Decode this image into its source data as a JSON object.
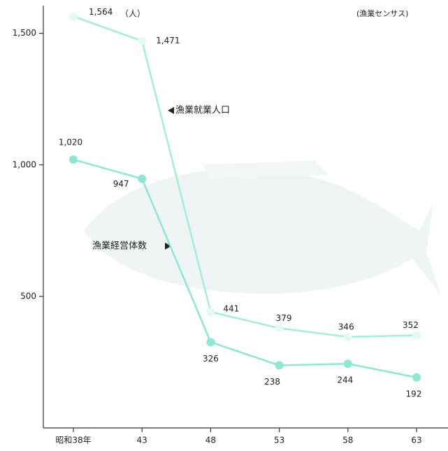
{
  "chart_data": {
    "type": "line",
    "categories": [
      "昭和38年",
      "43",
      "48",
      "53",
      "58",
      "63"
    ],
    "series": [
      {
        "name": "漁業就業人口",
        "color": "#a6ecdc",
        "marker": "#e6f8f3",
        "values": [
          1564,
          1471,
          441,
          379,
          346,
          352
        ],
        "value_labels": [
          "1,564",
          "1,471",
          "441",
          "379",
          "346",
          "352"
        ]
      },
      {
        "name": "漁業経営体数",
        "color": "#8fe6d2",
        "marker": "#8fe6d2",
        "values": [
          1020,
          947,
          326,
          238,
          244,
          192
        ],
        "value_labels": [
          "1,020",
          "947",
          "326",
          "238",
          "244",
          "192"
        ]
      }
    ],
    "unit": "（人）",
    "source": "(漁業センサス)",
    "ylim": [
      0,
      1600
    ],
    "yticks": [
      500,
      {
        "value": 1000,
        "label": "1,000"
      },
      {
        "value": 1500,
        "label": "1,500"
      }
    ]
  }
}
